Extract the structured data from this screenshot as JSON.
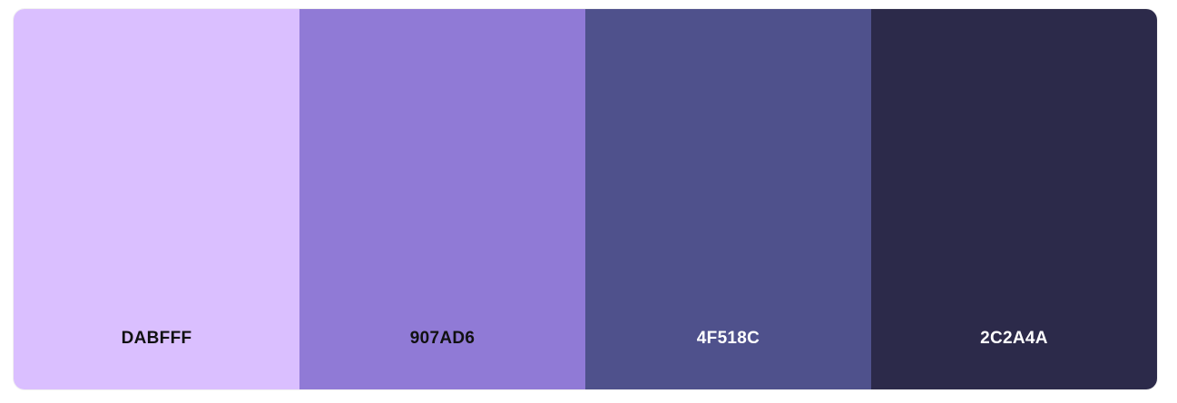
{
  "palette": {
    "swatches": [
      {
        "hex_label": "DABFFF",
        "color": "#DABFFF",
        "text_color": "#111111"
      },
      {
        "hex_label": "907AD6",
        "color": "#907AD6",
        "text_color": "#111111"
      },
      {
        "hex_label": "4F518C",
        "color": "#4F518C",
        "text_color": "#ffffff"
      },
      {
        "hex_label": "2C2A4A",
        "color": "#2C2A4A",
        "text_color": "#ffffff"
      }
    ]
  }
}
